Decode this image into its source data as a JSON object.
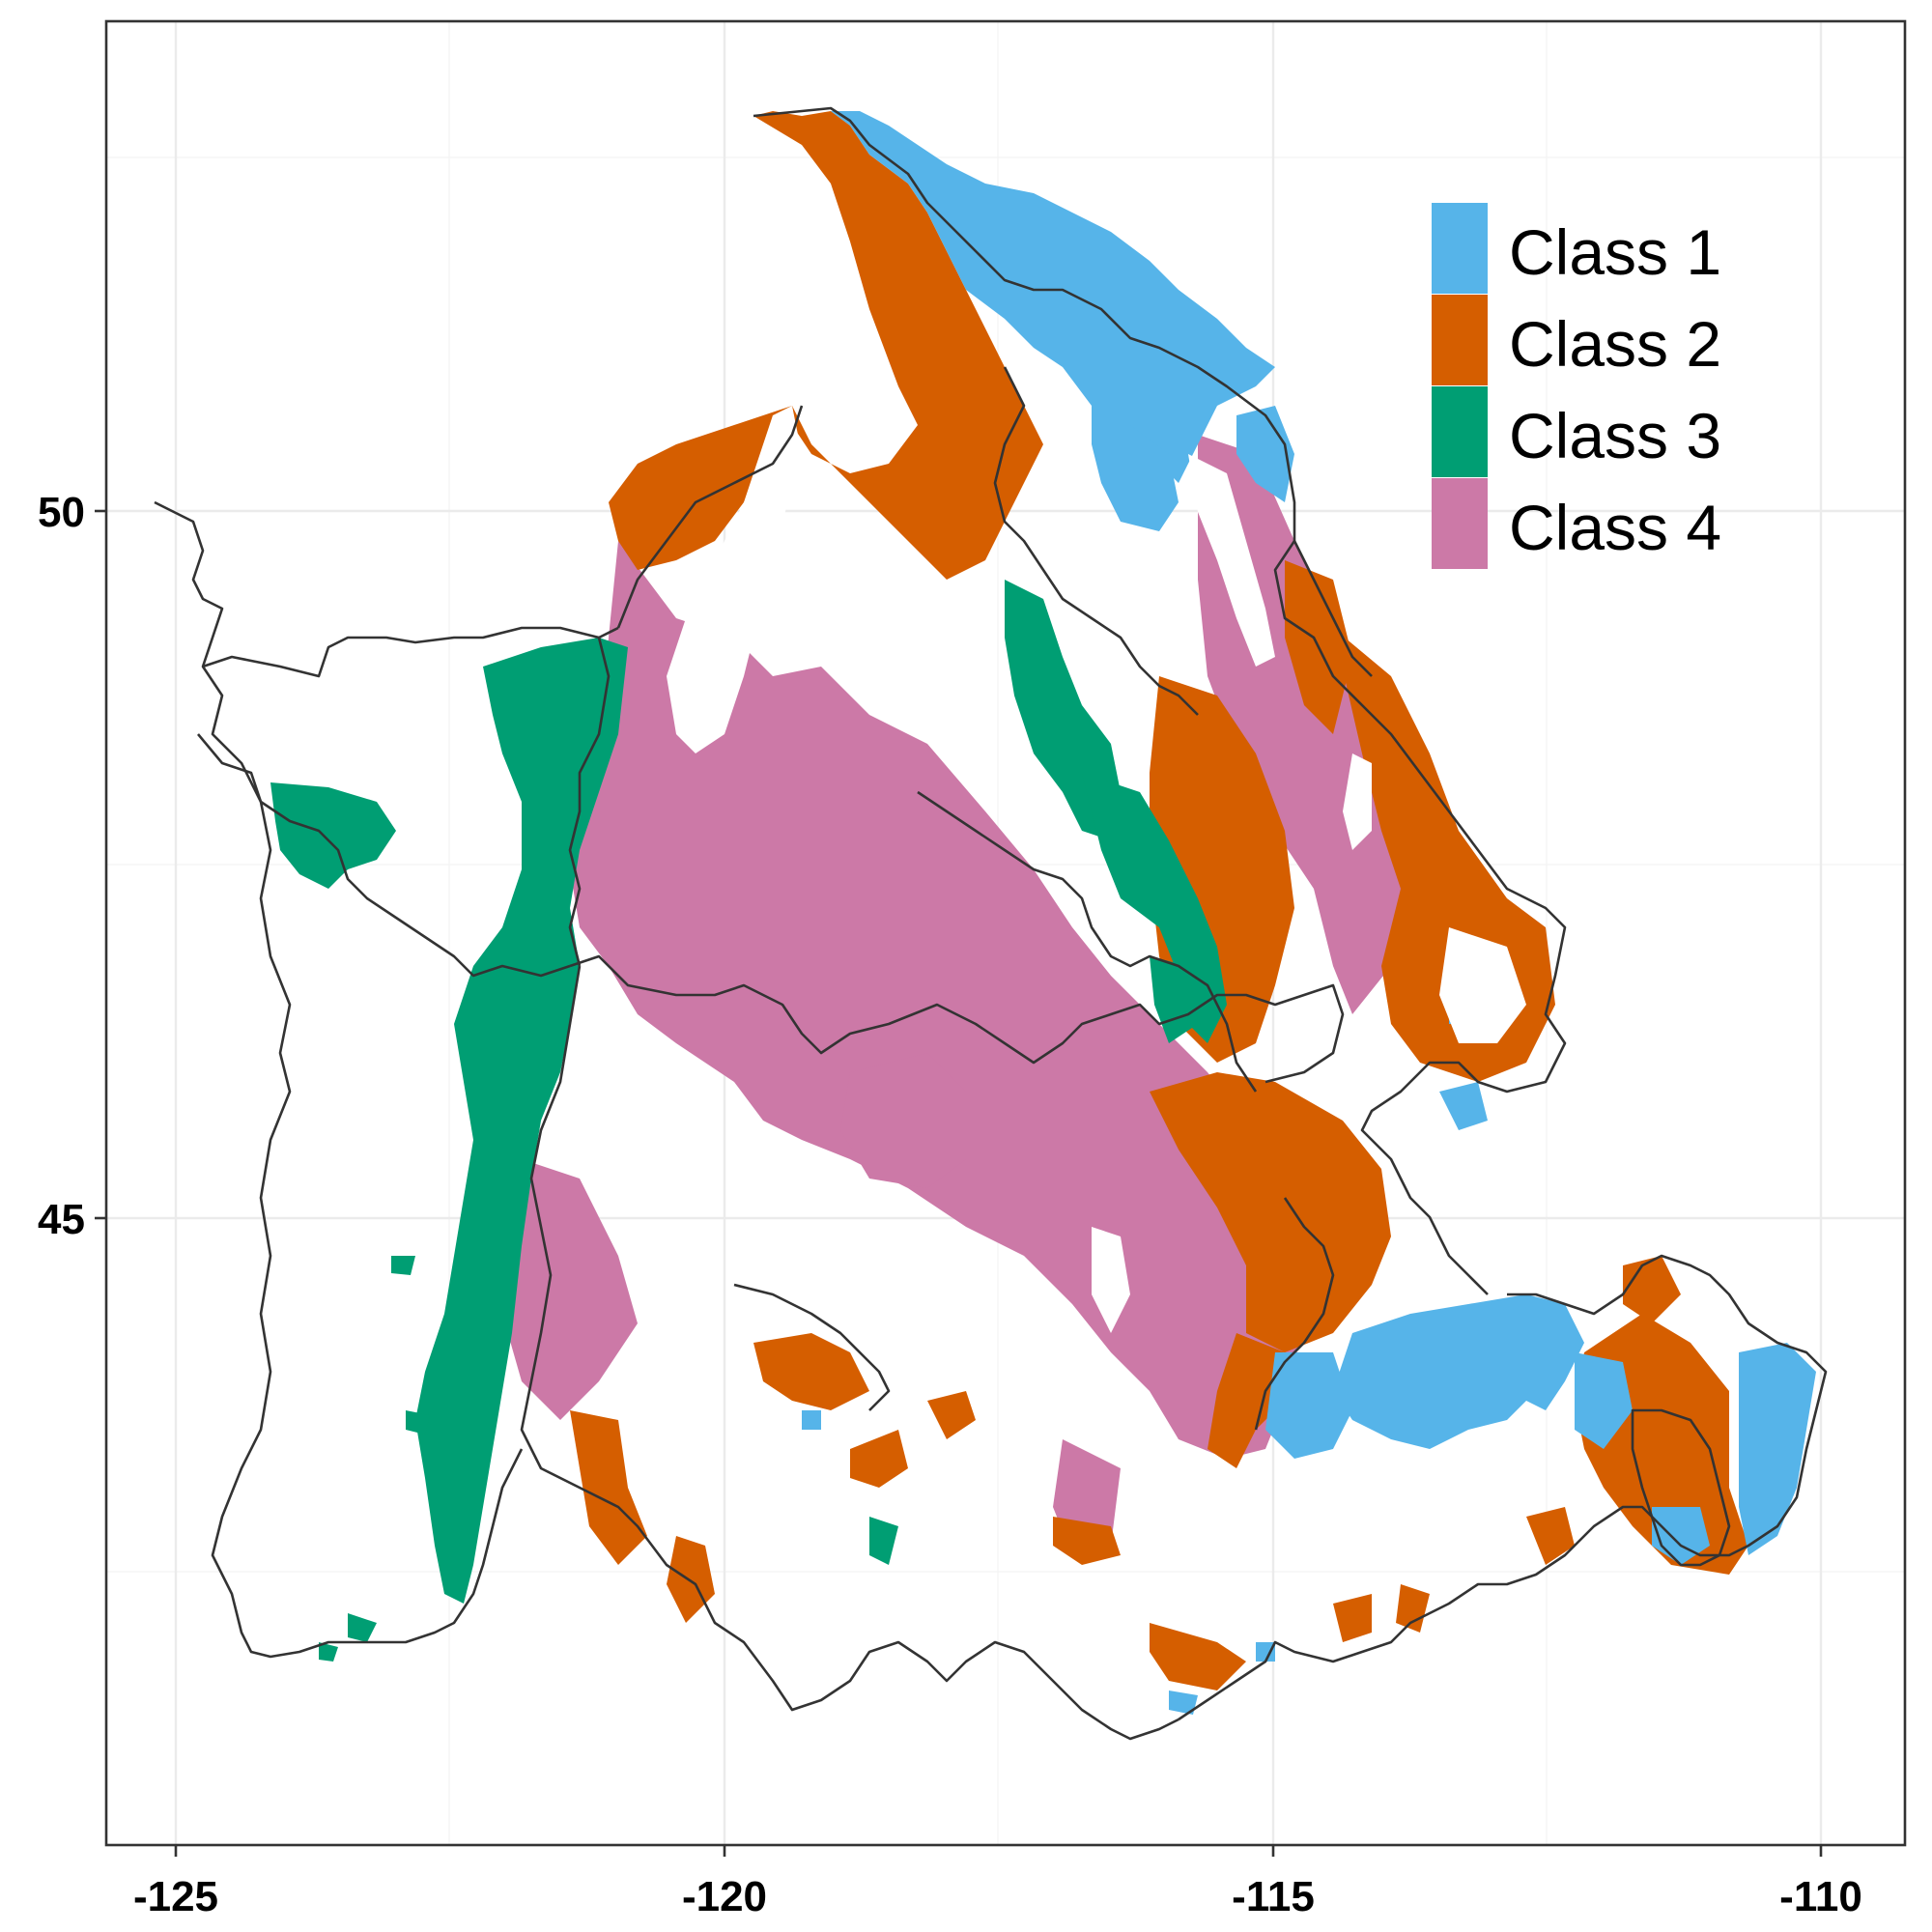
{
  "chart_data": {
    "type": "map",
    "x_ticks": [
      "-125",
      "-120",
      "-115",
      "-110"
    ],
    "y_ticks": [
      "45",
      "50"
    ],
    "xlim": [
      -125.7,
      -108.9
    ],
    "ylim": [
      40.8,
      53.4
    ],
    "grid": true,
    "legend_position": "top-right",
    "legend": [
      {
        "label": "Class 1",
        "color": "#56B4E9"
      },
      {
        "label": "Class 2",
        "color": "#D55E00"
      },
      {
        "label": "Class 3",
        "color": "#009E73"
      },
      {
        "label": "Class 4",
        "color": "#CC79A7"
      }
    ]
  }
}
